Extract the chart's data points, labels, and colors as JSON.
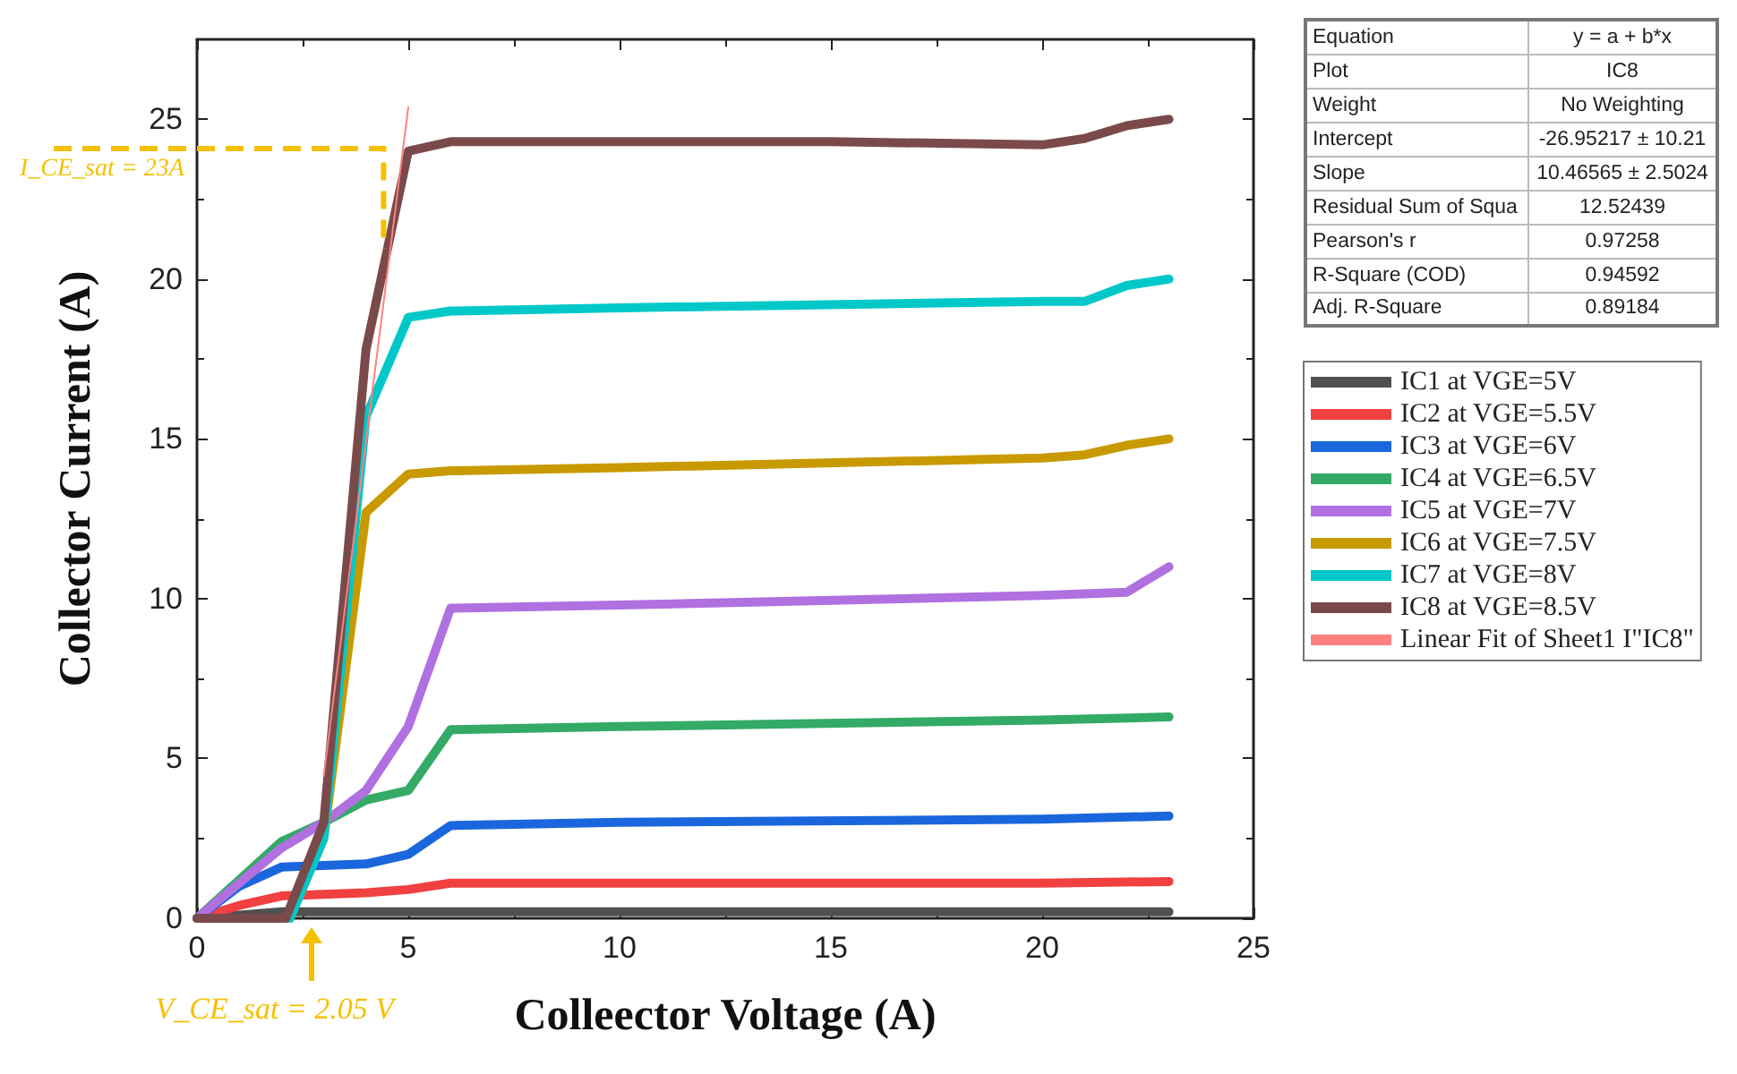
{
  "chart_data": [
    {
      "type": "line",
      "xlabel": "Colleector Voltage (A)",
      "ylabel": "Collector Current (A)",
      "xlim": [
        0,
        25
      ],
      "xticks": [
        0,
        5,
        10,
        15,
        20,
        25
      ],
      "ylim": [
        0,
        27.5
      ],
      "yticks": [
        0,
        5,
        10,
        15,
        20,
        25
      ],
      "grid": false,
      "legend": "right",
      "marker": "none",
      "line_style": "solid",
      "series": [
        {
          "name": "IC1 at VGE=5V",
          "color": "#505050",
          "x": [
            0,
            1,
            2,
            5,
            10,
            15,
            20,
            23
          ],
          "values": [
            0,
            0.1,
            0.2,
            0.2,
            0.2,
            0.2,
            0.2,
            0.2
          ]
        },
        {
          "name": "IC2 at VGE=5.5V",
          "color": "#f04040",
          "x": [
            0,
            1,
            2,
            4,
            5,
            6,
            10,
            20,
            23
          ],
          "values": [
            0,
            0.4,
            0.7,
            0.8,
            0.9,
            1.1,
            1.1,
            1.1,
            1.15
          ]
        },
        {
          "name": "IC3 at VGE=6V",
          "color": "#1a66dd",
          "x": [
            0,
            1,
            2,
            4,
            5,
            6,
            10,
            20,
            23
          ],
          "values": [
            0,
            1,
            1.6,
            1.7,
            2,
            2.9,
            3,
            3.1,
            3.2
          ]
        },
        {
          "name": "IC4 at VGE=6.5V",
          "color": "#33aa66",
          "x": [
            0,
            1,
            2,
            3,
            4,
            5,
            6,
            10,
            20,
            23
          ],
          "values": [
            0,
            1.2,
            2.4,
            3,
            3.7,
            4,
            5.9,
            6,
            6.2,
            6.3
          ]
        },
        {
          "name": "IC5 at VGE=7V",
          "color": "#b070e0",
          "x": [
            0,
            1,
            2,
            3,
            4,
            5,
            6,
            10,
            20,
            22,
            23
          ],
          "values": [
            0,
            1.1,
            2.2,
            3,
            4,
            6,
            9.7,
            9.8,
            10.1,
            10.2,
            11
          ]
        },
        {
          "name": "IC6 at VGE=7.5V",
          "color": "#c89a00",
          "x": [
            0,
            2.2,
            3,
            4,
            5,
            6,
            10,
            20,
            21,
            22,
            23
          ],
          "values": [
            0,
            0,
            2.5,
            12.7,
            13.9,
            14,
            14.1,
            14.4,
            14.5,
            14.8,
            15
          ]
        },
        {
          "name": "IC7 at VGE=8V",
          "color": "#00c8c8",
          "x": [
            0,
            2.2,
            3,
            4,
            5,
            6,
            10,
            20,
            21,
            22,
            23
          ],
          "values": [
            0,
            0,
            2.5,
            15.7,
            18.8,
            19,
            19.1,
            19.3,
            19.3,
            19.8,
            20
          ]
        },
        {
          "name": "IC8 at VGE=8.5V",
          "color": "#7a4a4a",
          "x": [
            0,
            2.1,
            3,
            4,
            5,
            6,
            10,
            15,
            20,
            21,
            22,
            23
          ],
          "values": [
            0,
            0,
            3,
            17.8,
            24,
            24.3,
            24.3,
            24.3,
            24.2,
            24.4,
            24.8,
            25
          ]
        },
        {
          "name": "Linear Fit of Sheet1 I\"IC8\"",
          "color": "#ff8080",
          "x": [
            3,
            5
          ],
          "values": [
            4.45,
            25.38
          ]
        }
      ],
      "annotations": [
        {
          "text": "I_CE_sat = 23A",
          "x": 4.5,
          "y": 20.9
        },
        {
          "text": "V_CE_sat = 2.05 V",
          "x": 2.7,
          "y": 0
        }
      ]
    },
    {
      "type": "other",
      "annotations": [
        "Equation",
        "y = a + b*x",
        "Plot",
        "IC8",
        "Weight",
        "No Weighting",
        "Intercept",
        "-26.95217 ± 10.21",
        "Slope",
        "10.46565 ± 2.5024",
        "Residual Sum of Squa",
        "12.52439",
        "Pearson's r",
        "0.97258",
        "R-Square (COD)",
        "0.94592",
        "Adj. R-Square",
        "0.89184"
      ]
    }
  ]
}
